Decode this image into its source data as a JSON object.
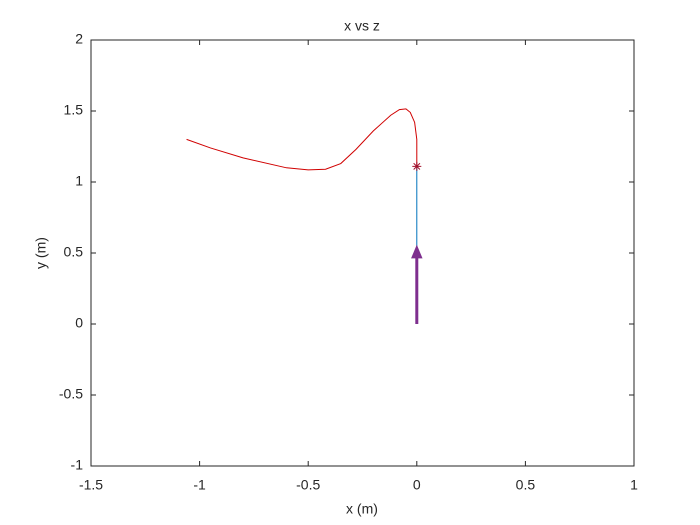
{
  "chart_data": {
    "type": "line",
    "title": "x vs z",
    "x_label": "x (m)",
    "y_label": "y (m)",
    "xlim": [
      -1.5,
      1
    ],
    "ylim": [
      -1,
      2
    ],
    "xticks": [
      -1.5,
      -1,
      -0.5,
      0,
      0.5,
      1
    ],
    "yticks": [
      -1,
      -0.5,
      0,
      0.5,
      1,
      1.5,
      2
    ],
    "grid": false,
    "series": [
      {
        "kind": "line",
        "color": "#0072bd",
        "x": [
          0,
          0
        ],
        "values": [
          0,
          1.11
        ]
      },
      {
        "kind": "line",
        "color": "#d00000",
        "x": [
          0,
          0,
          -0.01,
          -0.03,
          -0.05,
          -0.08,
          -0.12,
          -0.2,
          -0.28,
          -0.35,
          -0.42,
          -0.5,
          -0.6,
          -0.8,
          -0.95,
          -1.06
        ],
        "values": [
          1.11,
          1.3,
          1.42,
          1.49,
          1.515,
          1.51,
          1.47,
          1.36,
          1.23,
          1.13,
          1.09,
          1.085,
          1.1,
          1.17,
          1.24,
          1.3
        ]
      },
      {
        "kind": "marker",
        "color": "#a2142f",
        "x": [
          0
        ],
        "values": [
          1.11
        ]
      },
      {
        "kind": "arrow",
        "color": "#7e2f8e",
        "x": [
          0,
          0
        ],
        "values": [
          0,
          0.55
        ]
      }
    ]
  }
}
